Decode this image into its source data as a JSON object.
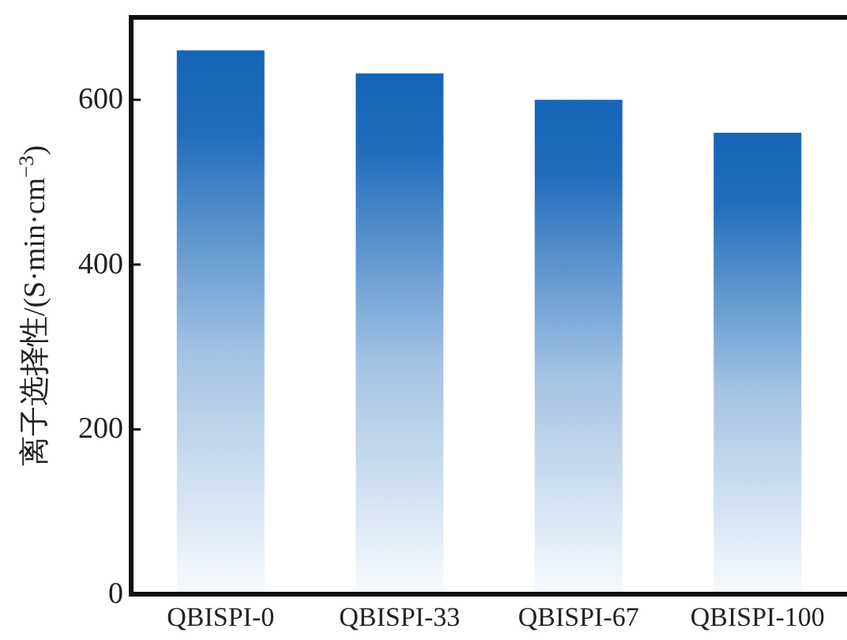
{
  "chart_data": {
    "type": "bar",
    "ylabel": "离子选择性/(S·min·cm$^{−3}$)",
    "categories": [
      "QBISPI-0",
      "QBISPI-33",
      "QBISPI-67",
      "QBISPI-100"
    ],
    "values": [
      660,
      632,
      600,
      560
    ],
    "color": "#1565b8",
    "ylim": [
      0,
      700
    ],
    "yticks": [
      0,
      200,
      400,
      600
    ]
  }
}
